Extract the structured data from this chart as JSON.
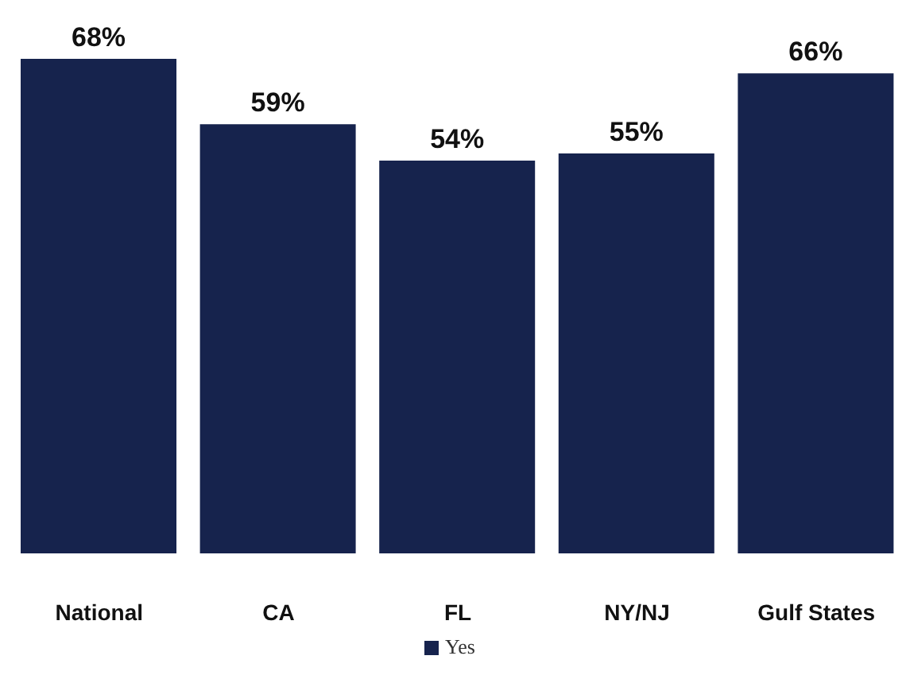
{
  "chart_data": {
    "type": "bar",
    "categories": [
      "National",
      "CA",
      "FL",
      "NY/NJ",
      "Gulf States"
    ],
    "series": [
      {
        "name": "Yes",
        "color": "#16234d",
        "values": [
          68,
          59,
          54,
          55,
          66
        ],
        "value_labels": [
          "68%",
          "59%",
          "54%",
          "55%",
          "66%"
        ]
      }
    ],
    "tick_labels": "x",
    "legend": "bottom",
    "grid": false
  }
}
